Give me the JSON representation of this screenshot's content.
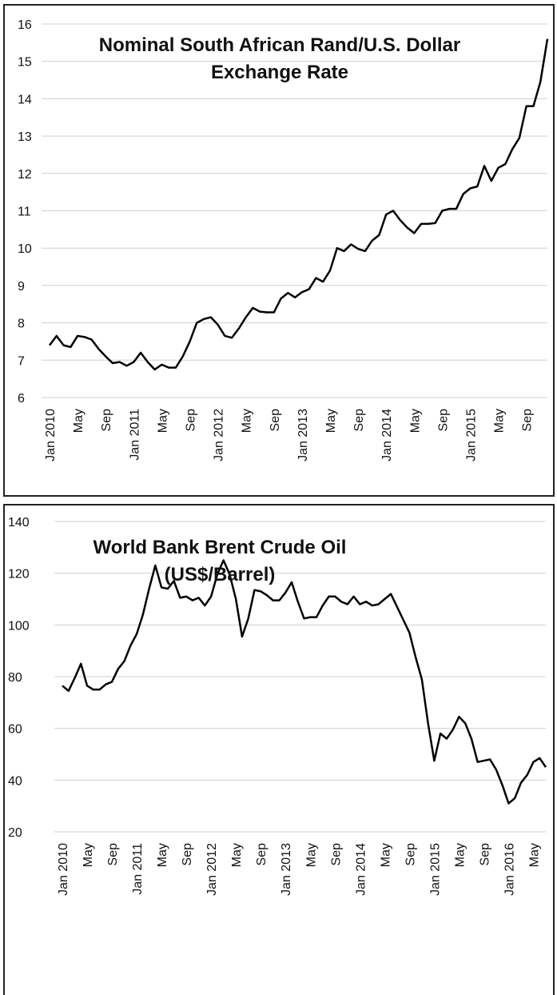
{
  "chart_data": [
    {
      "type": "line",
      "title": "Nominal South African Rand/U.S. Dollar Exchange Rate",
      "categories": [
        "Jan 2010",
        null,
        null,
        null,
        "May",
        null,
        null,
        null,
        "Sep",
        null,
        null,
        null,
        "Jan 2011",
        null,
        null,
        null,
        "May",
        null,
        null,
        null,
        "Sep",
        null,
        null,
        null,
        "Jan 2012",
        null,
        null,
        null,
        "May",
        null,
        null,
        null,
        "Sep",
        null,
        null,
        null,
        "Jan 2013",
        null,
        null,
        null,
        "May",
        null,
        null,
        null,
        "Sep",
        null,
        null,
        null,
        "Jan 2014",
        null,
        null,
        null,
        "May",
        null,
        null,
        null,
        "Sep",
        null,
        null,
        null,
        "Jan 2015",
        null,
        null,
        null,
        "May",
        null,
        null,
        null,
        "Sep",
        null,
        null,
        null
      ],
      "series": [
        {
          "color": "#000000",
          "values": [
            7.4,
            7.65,
            7.4,
            7.35,
            7.65,
            7.62,
            7.55,
            7.3,
            7.1,
            6.92,
            6.95,
            6.85,
            6.95,
            7.2,
            6.95,
            6.75,
            6.88,
            6.8,
            6.8,
            7.1,
            7.5,
            8.0,
            8.1,
            8.15,
            7.95,
            7.65,
            7.6,
            7.85,
            8.15,
            8.4,
            8.3,
            8.28,
            8.28,
            8.65,
            8.8,
            8.68,
            8.82,
            8.9,
            9.2,
            9.1,
            9.4,
            10.0,
            9.92,
            10.1,
            9.98,
            9.92,
            10.2,
            10.35,
            10.9,
            11.0,
            10.75,
            10.55,
            10.4,
            10.65,
            10.65,
            10.67,
            11.0,
            11.05,
            11.05,
            11.45,
            11.6,
            11.65,
            12.2,
            11.8,
            12.15,
            12.25,
            12.65,
            12.95,
            13.8,
            13.8,
            14.45,
            15.6
          ]
        }
      ],
      "ylim": [
        6,
        16
      ],
      "yticks": [
        6,
        7,
        8,
        9,
        10,
        11,
        12,
        13,
        14,
        15,
        16
      ],
      "grid": true
    },
    {
      "type": "line",
      "title": "World Bank Brent Crude Oil (US$/Barrel)",
      "categories": [
        "Jan 2010",
        null,
        null,
        null,
        "May",
        null,
        null,
        null,
        "Sep",
        null,
        null,
        null,
        "Jan 2011",
        null,
        null,
        null,
        "May",
        null,
        null,
        null,
        "Sep",
        null,
        null,
        null,
        "Jan 2012",
        null,
        null,
        null,
        "May",
        null,
        null,
        null,
        "Sep",
        null,
        null,
        null,
        "Jan 2013",
        null,
        null,
        null,
        "May",
        null,
        null,
        null,
        "Sep",
        null,
        null,
        null,
        "Jan 2014",
        null,
        null,
        null,
        "May",
        null,
        null,
        null,
        "Sep",
        null,
        null,
        null,
        "Jan 2015",
        null,
        null,
        null,
        "May",
        null,
        null,
        null,
        "Sep",
        null,
        null,
        null,
        "Jan 2016",
        null,
        null,
        null,
        "May",
        null,
        null
      ],
      "series": [
        {
          "color": "#000000",
          "values": [
            76.5,
            74.5,
            79.5,
            85,
            76.5,
            75,
            75,
            77,
            78,
            83,
            86,
            92,
            96.5,
            104,
            114,
            123,
            114.5,
            114,
            117,
            110.5,
            111,
            109.5,
            110.5,
            107.5,
            111,
            119.5,
            125,
            119.5,
            110,
            95.5,
            102.5,
            113.5,
            113,
            111.5,
            109.5,
            109.5,
            112.5,
            116.5,
            109,
            102.5,
            103,
            103,
            107.5,
            111,
            111,
            109,
            108,
            111,
            108,
            109,
            107.5,
            108,
            110,
            112,
            107,
            102,
            97,
            87.5,
            79,
            62,
            47.5,
            58,
            56,
            59.5,
            64.5,
            62,
            56,
            47,
            47.5,
            48,
            44,
            38,
            31,
            33,
            39,
            42,
            47,
            48.5,
            45
          ]
        }
      ],
      "ylim": [
        20,
        140
      ],
      "yticks": [
        20,
        40,
        60,
        80,
        100,
        120,
        140
      ],
      "grid": true
    }
  ]
}
